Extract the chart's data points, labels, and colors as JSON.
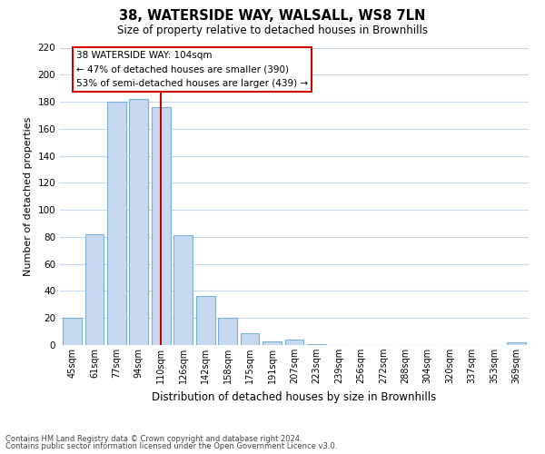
{
  "title": "38, WATERSIDE WAY, WALSALL, WS8 7LN",
  "subtitle": "Size of property relative to detached houses in Brownhills",
  "xlabel": "Distribution of detached houses by size in Brownhills",
  "ylabel": "Number of detached properties",
  "bar_labels": [
    "45sqm",
    "61sqm",
    "77sqm",
    "94sqm",
    "110sqm",
    "126sqm",
    "142sqm",
    "158sqm",
    "175sqm",
    "191sqm",
    "207sqm",
    "223sqm",
    "239sqm",
    "256sqm",
    "272sqm",
    "288sqm",
    "304sqm",
    "320sqm",
    "337sqm",
    "353sqm",
    "369sqm"
  ],
  "bar_values": [
    20,
    82,
    180,
    182,
    176,
    81,
    36,
    20,
    9,
    3,
    4,
    1,
    0,
    0,
    0,
    0,
    0,
    0,
    0,
    0,
    2
  ],
  "bar_color": "#c6d9f1",
  "bar_edge_color": "#7bafd4",
  "highlight_bar_index": 4,
  "highlight_line_color": "#cc0000",
  "ylim": [
    0,
    220
  ],
  "yticks": [
    0,
    20,
    40,
    60,
    80,
    100,
    120,
    140,
    160,
    180,
    200,
    220
  ],
  "annotation_title": "38 WATERSIDE WAY: 104sqm",
  "annotation_line1": "← 47% of detached houses are smaller (390)",
  "annotation_line2": "53% of semi-detached houses are larger (439) →",
  "annotation_box_color": "#ffffff",
  "annotation_box_edge": "#cc0000",
  "footnote1": "Contains HM Land Registry data © Crown copyright and database right 2024.",
  "footnote2": "Contains public sector information licensed under the Open Government Licence v3.0.",
  "background_color": "#ffffff",
  "grid_color": "#c8d8ec"
}
